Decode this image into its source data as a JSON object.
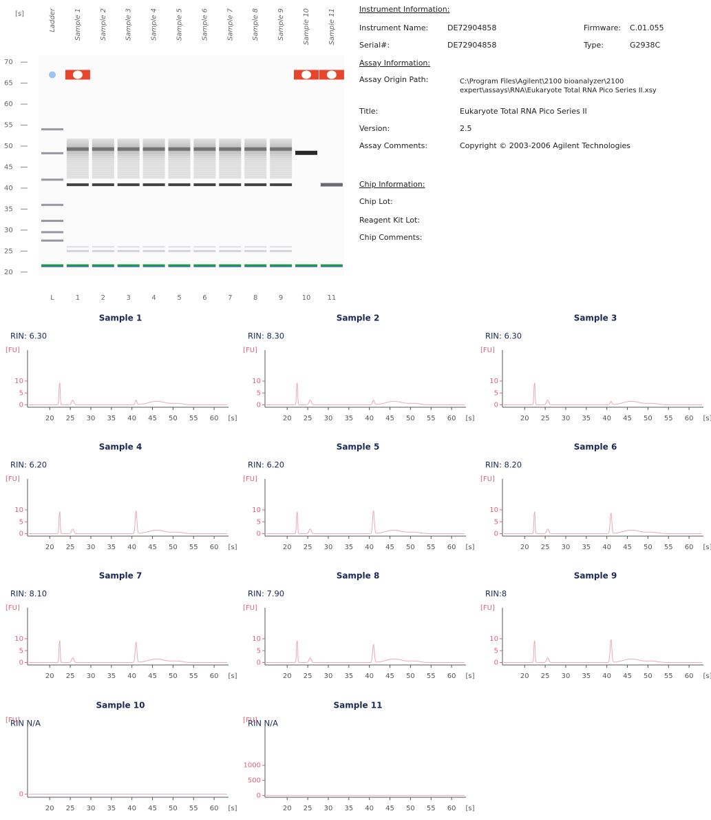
{
  "gel": {
    "unit": "[s]",
    "ylim": [
      18,
      72
    ],
    "yticks": [
      70,
      65,
      60,
      55,
      50,
      45,
      40,
      35,
      30,
      25,
      20
    ],
    "lanes": [
      "Ladder",
      "Sample 1",
      "Sample 2",
      "Sample 3",
      "Sample 4",
      "Sample 5",
      "Sample 6",
      "Sample 7",
      "Sample 8",
      "Sample 9",
      "Sample 10",
      "Sample 11"
    ],
    "lane_numbers": [
      "L",
      "1",
      "2",
      "3",
      "4",
      "5",
      "6",
      "7",
      "8",
      "9",
      "10",
      "11"
    ]
  },
  "info": {
    "instrument_heading": "Instrument Information:",
    "instrument_name_label": "Instrument Name:",
    "instrument_name": "DE72904858",
    "firmware_label": "Firmware:",
    "firmware": "C.01.055",
    "serial_label": "Serial#:",
    "serial": "DE72904858",
    "type_label": "Type:",
    "type": "G2938C",
    "assay_heading": "Assay Information:",
    "origin_label": "Assay Origin Path:",
    "origin_lines": [
      "C:\\Program Files\\Agilent\\2100 bioanalyzer\\2100",
      "expert\\assays\\RNA\\Eukaryote Total RNA Pico Series II.xsy"
    ],
    "title_label": "Title:",
    "title": "Eukaryote Total RNA Pico Series II",
    "version_label": "Version:",
    "version": "2.5",
    "comments_label": "Assay Comments:",
    "comments": "Copyright © 2003-2006 Agilent Technologies",
    "chip_heading": "Chip Information:",
    "chip_lot_label": "Chip Lot:",
    "reagent_label": "Reagent Kit Lot:",
    "chip_comments_label": "Chip Comments:"
  },
  "chart_data": {
    "type": "line",
    "xlim": [
      14.6,
      63.5
    ],
    "xticks": [
      20,
      25,
      30,
      35,
      40,
      45,
      50,
      55,
      60
    ],
    "xunit": "[s]",
    "ylabel": "[FU]",
    "plots": [
      {
        "title": "Sample 1",
        "rin": "RIN: 6.30",
        "ylim": [
          -1,
          23
        ],
        "yticks": [
          0,
          5,
          10
        ]
      },
      {
        "title": "Sample 2",
        "rin": "RIN: 8.30",
        "ylim": [
          -1,
          23
        ],
        "yticks": [
          0,
          5,
          10
        ]
      },
      {
        "title": "Sample 3",
        "rin": "RIN: 6.30",
        "ylim": [
          -1,
          23
        ],
        "yticks": [
          0,
          5,
          10
        ]
      },
      {
        "title": "Sample 4",
        "rin": "RIN: 6.20",
        "ylim": [
          -1,
          23
        ],
        "yticks": [
          0,
          5,
          10
        ]
      },
      {
        "title": "Sample 5",
        "rin": "RIN: 6.20",
        "ylim": [
          -1,
          23
        ],
        "yticks": [
          0,
          5,
          10
        ]
      },
      {
        "title": "Sample 6",
        "rin": "RIN: 8.20",
        "ylim": [
          -1,
          23
        ],
        "yticks": [
          0,
          5,
          10
        ]
      },
      {
        "title": "Sample 7",
        "rin": "RIN: 8.10",
        "ylim": [
          -1,
          23
        ],
        "yticks": [
          0,
          5,
          10
        ]
      },
      {
        "title": "Sample 8",
        "rin": "RIN: 7.90",
        "ylim": [
          -1,
          23
        ],
        "yticks": [
          0,
          5,
          10
        ]
      },
      {
        "title": "Sample 9",
        "rin": "RIN:8",
        "ylim": [
          -1,
          23
        ],
        "yticks": [
          0,
          5,
          10
        ]
      },
      {
        "title": "Sample 10",
        "rin": "RIN N/A",
        "ylim": [
          -1,
          23
        ],
        "yticks": [
          0
        ]
      },
      {
        "title": "Sample 11",
        "rin": "RIN N/A",
        "ylim": [
          -60,
          2500
        ],
        "yticks": [
          0,
          500,
          1000
        ]
      }
    ]
  }
}
